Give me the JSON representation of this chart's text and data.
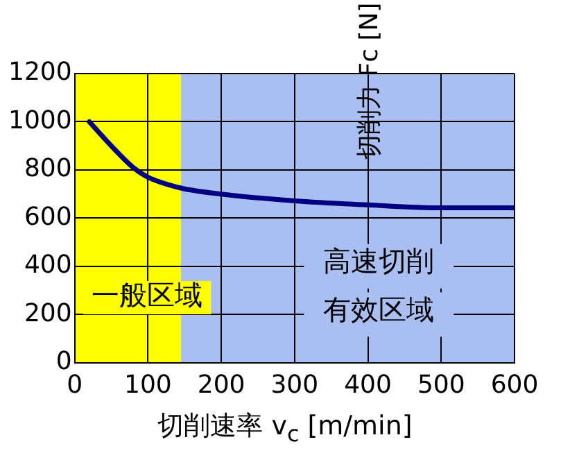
{
  "chart_data": {
    "type": "line",
    "xlabel": "切削速率 v$_{c}$ [m/min]",
    "ylabel": "切削力 Fc [N]",
    "x": [
      20,
      50,
      80,
      100,
      145,
      200,
      300,
      400,
      500,
      600
    ],
    "series": [
      {
        "color": "#000080",
        "values": [
          1000,
          900,
          810,
          770,
          725,
          700,
          672,
          655,
          643,
          643
        ]
      }
    ],
    "xlim": [
      0,
      600
    ],
    "xticks": [
      0,
      100,
      200,
      300,
      400,
      500,
      600
    ],
    "ylim": [
      0,
      1200
    ],
    "yticks": [
      0,
      200,
      400,
      600,
      800,
      1000,
      1200
    ],
    "bands": [
      {
        "axis": "x",
        "from": 0,
        "to": 145,
        "label": "一般区域",
        "color": "#ffff00"
      },
      {
        "axis": "x",
        "from": 145,
        "to": 600,
        "color": "#a9bff2"
      }
    ],
    "annotations": [
      "高速切削",
      "有效区域"
    ],
    "grid": true,
    "legend": false,
    "marker": "none",
    "line_style": "solid"
  }
}
